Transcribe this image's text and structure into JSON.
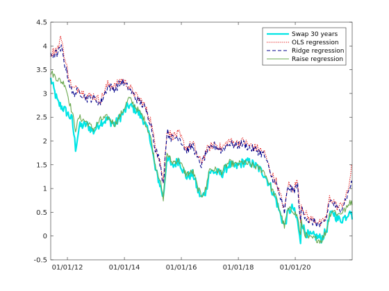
{
  "chart_data": {
    "type": "line",
    "title": "",
    "xlabel": "",
    "ylabel": "",
    "xlim": [
      "2011-06-01",
      "2021-12-31"
    ],
    "ylim": [
      -0.5,
      4.5
    ],
    "grid": false,
    "legend_position": "top-right",
    "x_ticks": [
      "01/01/12",
      "01/01/14",
      "01/01/16",
      "01/01/18",
      "01/01/20"
    ],
    "x_tick_dates": [
      "2012-01-01",
      "2014-01-01",
      "2016-01-01",
      "2018-01-01",
      "2020-01-01"
    ],
    "y_ticks": [
      -0.5,
      0,
      0.5,
      1,
      1.5,
      2,
      2.5,
      3,
      3.5,
      4,
      4.5
    ],
    "y_tick_labels": [
      "-0.5",
      "0",
      "0.5",
      "1",
      "1.5",
      "2",
      "2.5",
      "3",
      "3.5",
      "4",
      "4.5"
    ],
    "series": [
      {
        "name": "Swap 30 years",
        "color": "#00e5e5",
        "style": "solid-thick",
        "x": [
          "2011-06-01",
          "2011-09-01",
          "2011-12-01",
          "2012-03-01",
          "2012-04-15",
          "2012-06-01",
          "2012-09-01",
          "2012-12-01",
          "2013-03-01",
          "2013-06-01",
          "2013-09-01",
          "2013-12-01",
          "2014-03-01",
          "2014-06-01",
          "2014-09-01",
          "2014-12-01",
          "2015-02-01",
          "2015-04-01",
          "2015-05-15",
          "2015-07-01",
          "2015-09-01",
          "2015-12-01",
          "2016-03-01",
          "2016-06-01",
          "2016-08-01",
          "2016-09-15",
          "2016-11-15",
          "2016-12-20",
          "2017-03-01",
          "2017-06-01",
          "2017-09-01",
          "2017-12-01",
          "2018-03-01",
          "2018-06-01",
          "2018-09-01",
          "2018-12-01",
          "2019-03-01",
          "2019-05-01",
          "2019-06-15",
          "2019-08-15",
          "2019-10-01",
          "2019-12-01",
          "2020-02-01",
          "2020-03-09",
          "2020-03-18",
          "2020-05-01",
          "2020-07-01",
          "2020-09-01",
          "2020-12-01",
          "2021-02-01",
          "2021-03-15",
          "2021-05-01",
          "2021-07-01",
          "2021-08-15",
          "2021-10-01",
          "2021-11-01",
          "2021-12-01",
          "2021-12-31"
        ],
        "values": [
          3.3,
          2.8,
          2.65,
          2.45,
          1.85,
          2.3,
          2.35,
          2.2,
          2.4,
          2.45,
          2.35,
          2.55,
          2.75,
          2.65,
          2.45,
          2.05,
          1.4,
          1.1,
          0.8,
          1.7,
          1.45,
          1.6,
          1.25,
          1.3,
          0.95,
          0.8,
          0.95,
          1.35,
          1.35,
          1.3,
          1.5,
          1.45,
          1.55,
          1.55,
          1.45,
          1.3,
          1.0,
          0.75,
          0.5,
          0.2,
          0.5,
          0.6,
          0.3,
          -0.2,
          0.35,
          0.1,
          0.0,
          0.0,
          -0.05,
          0.1,
          0.4,
          0.5,
          0.35,
          0.35,
          0.4,
          0.45,
          0.6,
          0.35
        ]
      },
      {
        "name": "OLS regression",
        "color": "#e00000",
        "style": "dotted",
        "x": [
          "2011-06-01",
          "2011-09-01",
          "2011-10-15",
          "2011-12-01",
          "2012-03-01",
          "2012-06-01",
          "2012-09-01",
          "2012-12-01",
          "2013-03-01",
          "2013-06-01",
          "2013-09-01",
          "2013-12-01",
          "2014-03-01",
          "2014-06-01",
          "2014-09-01",
          "2014-12-01",
          "2015-02-01",
          "2015-04-01",
          "2015-05-15",
          "2015-07-01",
          "2015-09-01",
          "2015-12-01",
          "2016-03-01",
          "2016-06-01",
          "2016-08-01",
          "2016-09-15",
          "2016-11-15",
          "2016-12-20",
          "2017-03-01",
          "2017-06-01",
          "2017-09-01",
          "2017-12-01",
          "2018-03-01",
          "2018-06-01",
          "2018-09-01",
          "2018-12-01",
          "2019-03-01",
          "2019-05-01",
          "2019-06-15",
          "2019-08-15",
          "2019-10-01",
          "2019-12-01",
          "2020-02-01",
          "2020-03-09",
          "2020-03-18",
          "2020-05-01",
          "2020-07-01",
          "2020-09-01",
          "2020-12-01",
          "2021-02-01",
          "2021-03-15",
          "2021-05-01",
          "2021-07-01",
          "2021-08-15",
          "2021-10-01",
          "2021-11-01",
          "2021-12-01",
          "2021-12-31"
        ],
        "values": [
          3.85,
          3.95,
          4.2,
          3.7,
          3.1,
          3.1,
          2.95,
          2.95,
          2.85,
          3.2,
          3.15,
          3.3,
          3.15,
          2.95,
          2.8,
          2.45,
          1.9,
          1.6,
          1.15,
          2.25,
          2.1,
          2.15,
          1.85,
          1.95,
          1.65,
          1.55,
          1.8,
          1.85,
          1.95,
          1.85,
          2.0,
          1.95,
          2.0,
          1.9,
          1.85,
          1.75,
          1.3,
          1.15,
          0.9,
          0.55,
          1.1,
          1.0,
          1.15,
          0.3,
          0.65,
          0.5,
          0.35,
          0.35,
          0.25,
          0.4,
          0.8,
          0.75,
          0.6,
          0.65,
          0.8,
          0.9,
          1.2,
          1.5
        ]
      },
      {
        "name": "Ridge regression",
        "color": "#00008b",
        "style": "dashed",
        "x": [
          "2011-06-01",
          "2011-09-01",
          "2011-10-15",
          "2011-12-01",
          "2012-03-01",
          "2012-06-01",
          "2012-09-01",
          "2012-12-01",
          "2013-03-01",
          "2013-06-01",
          "2013-09-01",
          "2013-12-01",
          "2014-03-01",
          "2014-06-01",
          "2014-09-01",
          "2014-12-01",
          "2015-02-01",
          "2015-04-01",
          "2015-05-15",
          "2015-07-01",
          "2015-09-01",
          "2015-12-01",
          "2016-03-01",
          "2016-06-01",
          "2016-08-01",
          "2016-09-15",
          "2016-11-15",
          "2016-12-20",
          "2017-03-01",
          "2017-06-01",
          "2017-09-01",
          "2017-12-01",
          "2018-03-01",
          "2018-06-01",
          "2018-09-01",
          "2018-12-01",
          "2019-03-01",
          "2019-05-01",
          "2019-06-15",
          "2019-08-15",
          "2019-10-01",
          "2019-12-01",
          "2020-02-01",
          "2020-03-09",
          "2020-03-18",
          "2020-05-01",
          "2020-07-01",
          "2020-09-01",
          "2020-12-01",
          "2021-02-01",
          "2021-03-15",
          "2021-05-01",
          "2021-07-01",
          "2021-08-15",
          "2021-10-01",
          "2021-11-01",
          "2021-12-01",
          "2021-12-31"
        ],
        "values": [
          3.8,
          3.85,
          3.95,
          3.6,
          3.0,
          3.05,
          2.9,
          2.9,
          2.8,
          3.15,
          3.1,
          3.25,
          3.1,
          2.9,
          2.75,
          2.4,
          1.85,
          1.55,
          1.1,
          2.2,
          2.05,
          2.1,
          1.8,
          1.9,
          1.6,
          1.5,
          1.75,
          1.8,
          1.9,
          1.8,
          1.95,
          1.9,
          1.95,
          1.85,
          1.8,
          1.7,
          1.25,
          1.1,
          0.85,
          0.5,
          1.05,
          0.95,
          1.05,
          0.25,
          0.6,
          0.45,
          0.3,
          0.3,
          0.2,
          0.35,
          0.75,
          0.7,
          0.55,
          0.6,
          0.75,
          0.85,
          1.05,
          1.1
        ]
      },
      {
        "name": "Raise regression",
        "color": "#6aa84f",
        "style": "solid",
        "x": [
          "2011-06-01",
          "2011-09-01",
          "2011-12-01",
          "2012-03-01",
          "2012-04-15",
          "2012-06-01",
          "2012-09-01",
          "2012-12-01",
          "2013-03-01",
          "2013-06-01",
          "2013-09-01",
          "2013-12-01",
          "2014-03-01",
          "2014-06-01",
          "2014-09-01",
          "2014-12-01",
          "2015-02-01",
          "2015-04-01",
          "2015-05-15",
          "2015-07-01",
          "2015-09-01",
          "2015-12-01",
          "2016-03-01",
          "2016-06-01",
          "2016-08-01",
          "2016-09-15",
          "2016-11-15",
          "2016-12-20",
          "2017-03-01",
          "2017-06-01",
          "2017-09-01",
          "2017-12-01",
          "2018-03-01",
          "2018-06-01",
          "2018-09-01",
          "2018-12-01",
          "2019-03-01",
          "2019-05-01",
          "2019-06-15",
          "2019-08-15",
          "2019-10-01",
          "2019-12-01",
          "2020-02-01",
          "2020-03-09",
          "2020-03-18",
          "2020-05-01",
          "2020-07-01",
          "2020-09-01",
          "2020-12-01",
          "2021-02-01",
          "2021-03-15",
          "2021-05-01",
          "2021-07-01",
          "2021-08-15",
          "2021-10-01",
          "2021-11-01",
          "2021-12-01",
          "2021-12-31"
        ],
        "values": [
          3.45,
          3.3,
          3.2,
          2.6,
          2.25,
          2.5,
          2.4,
          2.25,
          2.45,
          2.5,
          2.35,
          2.6,
          2.9,
          2.7,
          2.5,
          2.1,
          1.5,
          1.2,
          0.75,
          1.75,
          1.55,
          1.6,
          1.3,
          1.35,
          1.0,
          0.85,
          1.0,
          1.4,
          1.4,
          1.35,
          1.55,
          1.5,
          1.55,
          1.5,
          1.45,
          1.35,
          1.0,
          0.8,
          0.55,
          0.2,
          0.55,
          0.55,
          0.4,
          0.0,
          0.3,
          0.05,
          -0.05,
          -0.05,
          -0.1,
          0.1,
          0.45,
          0.55,
          0.45,
          0.5,
          0.55,
          0.6,
          0.75,
          0.65
        ]
      }
    ]
  }
}
